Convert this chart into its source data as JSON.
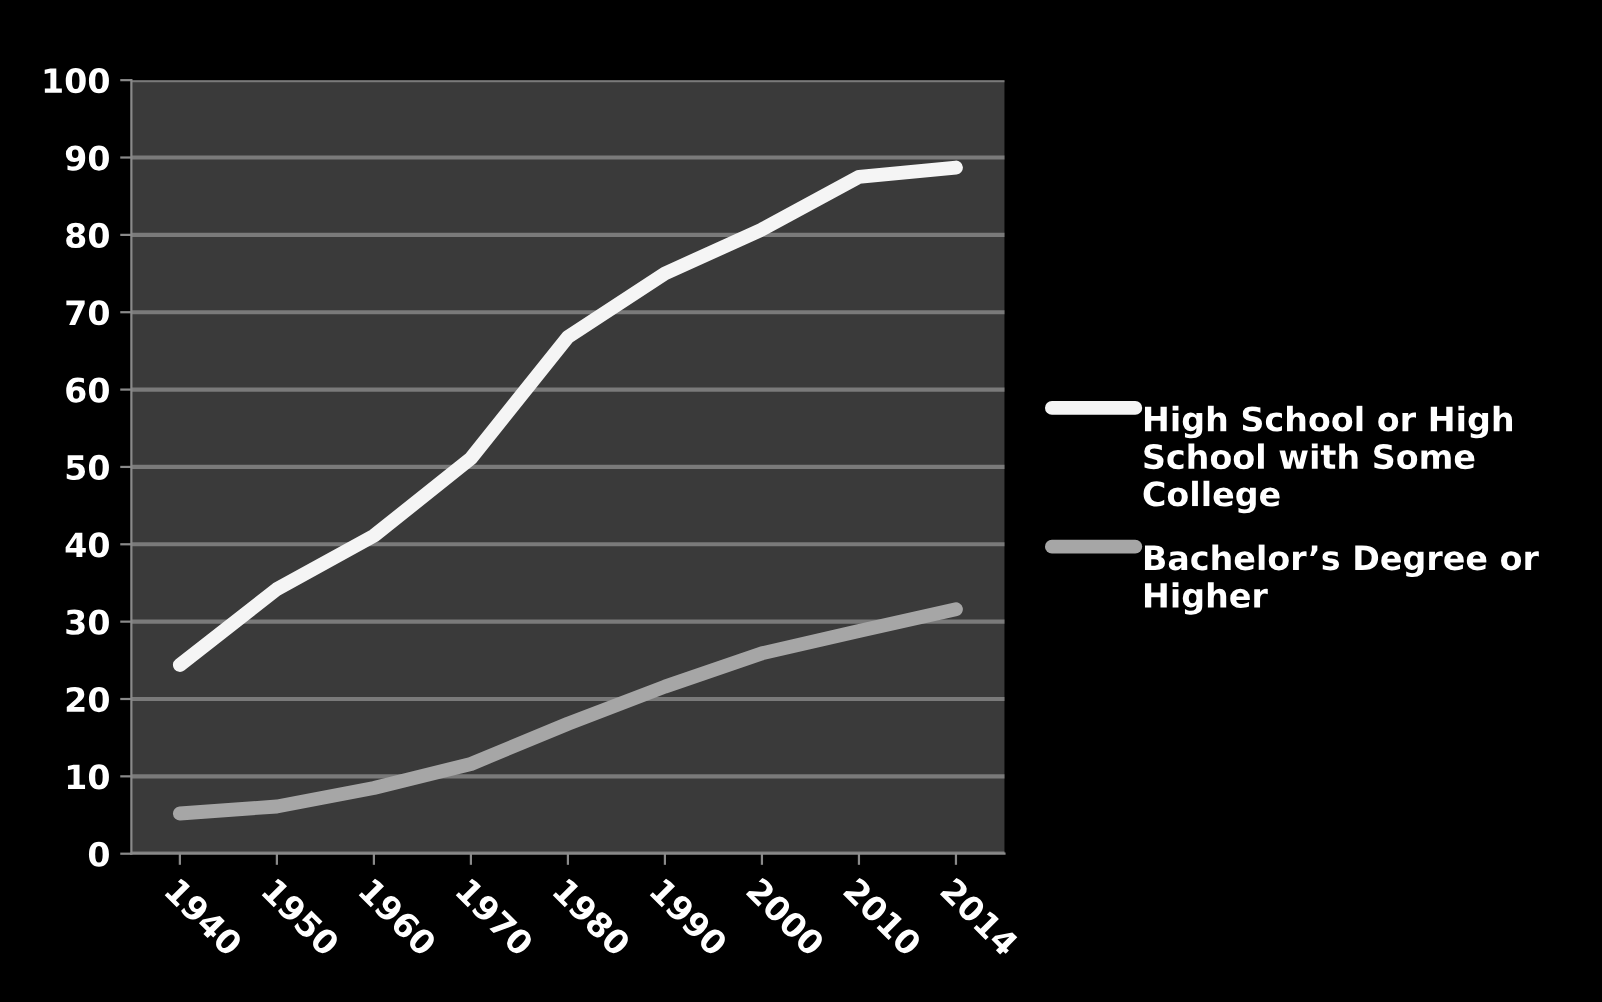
{
  "chart_data": {
    "type": "line",
    "categories": [
      "1940",
      "1950",
      "1960",
      "1970",
      "1980",
      "1990",
      "2000",
      "2010",
      "2014"
    ],
    "series": [
      {
        "name": "High School or High School with Some College",
        "color": "#f5f5f5",
        "values": [
          24.4,
          34.2,
          41.1,
          51.1,
          66.8,
          75,
          80.7,
          87.5,
          88.7
        ]
      },
      {
        "name": "Bachelor’s Degree or Higher",
        "color": "#a6a6a6",
        "values": [
          5.2,
          6.1,
          8.5,
          11.6,
          16.8,
          21.6,
          25.9,
          28.8,
          31.6
        ]
      }
    ],
    "ylim": [
      0,
      100
    ],
    "yticks": [
      0,
      10,
      20,
      30,
      40,
      50,
      60,
      70,
      80,
      90,
      100
    ],
    "grid": "y",
    "legend": "right",
    "marker": "none",
    "line_style": "solid"
  }
}
